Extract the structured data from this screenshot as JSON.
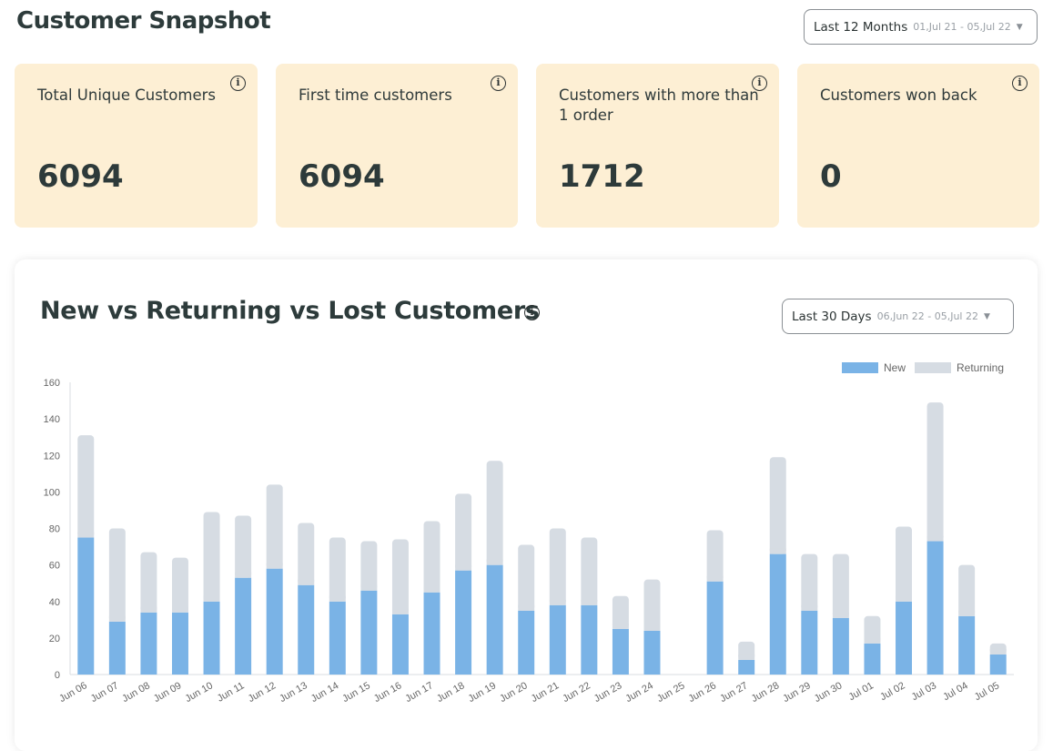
{
  "header": {
    "title": "Customer Snapshot",
    "range": {
      "label": "Last 12 Months",
      "dates": "01,Jul 21 - 05,Jul 22"
    }
  },
  "cards": [
    {
      "label": "Total Unique Customers",
      "value": "6094"
    },
    {
      "label": "First time customers",
      "value": "6094"
    },
    {
      "label": "Customers with more than 1 order",
      "value": "1712"
    },
    {
      "label": "Customers won back",
      "value": "0"
    }
  ],
  "chart_panel": {
    "title": "New vs Returning vs Lost Customers",
    "range": {
      "label": "Last 30 Days",
      "dates": "06,Jun 22 - 05,Jul 22"
    }
  },
  "icons": {
    "info": "i",
    "caret": "▼"
  },
  "colors": {
    "card_bg": "#fdefd4",
    "new": "#7ab3e6",
    "returning": "#d6dce3"
  },
  "chart_data": {
    "type": "bar",
    "stacked": true,
    "categories": [
      "Jun 06",
      "Jun 07",
      "Jun 08",
      "Jun 09",
      "Jun 10",
      "Jun 11",
      "Jun 12",
      "Jun 13",
      "Jun 14",
      "Jun 15",
      "Jun 16",
      "Jun 17",
      "Jun 18",
      "Jun 19",
      "Jun 20",
      "Jun 21",
      "Jun 22",
      "Jun 23",
      "Jun 24",
      "Jun 25",
      "Jun 26",
      "Jun 27",
      "Jun 28",
      "Jun 29",
      "Jun 30",
      "Jul 01",
      "Jul 02",
      "Jul 03",
      "Jul 04",
      "Jul 05"
    ],
    "series": [
      {
        "name": "New",
        "color": "#7ab3e6",
        "values": [
          75,
          29,
          34,
          34,
          40,
          53,
          58,
          49,
          40,
          46,
          33,
          45,
          57,
          60,
          35,
          38,
          38,
          25,
          24,
          0,
          51,
          8,
          66,
          35,
          31,
          17,
          40,
          73,
          32,
          11
        ]
      },
      {
        "name": "Returning",
        "color": "#d6dce3",
        "values": [
          56,
          51,
          33,
          30,
          49,
          34,
          46,
          34,
          35,
          27,
          41,
          39,
          42,
          57,
          36,
          42,
          37,
          18,
          28,
          0,
          28,
          10,
          53,
          31,
          35,
          15,
          41,
          76,
          28,
          6
        ]
      }
    ],
    "ylim": [
      0,
      160
    ],
    "yticks": [
      0,
      20,
      40,
      60,
      80,
      100,
      120,
      140,
      160
    ],
    "legend": "top-right",
    "grid": false
  }
}
